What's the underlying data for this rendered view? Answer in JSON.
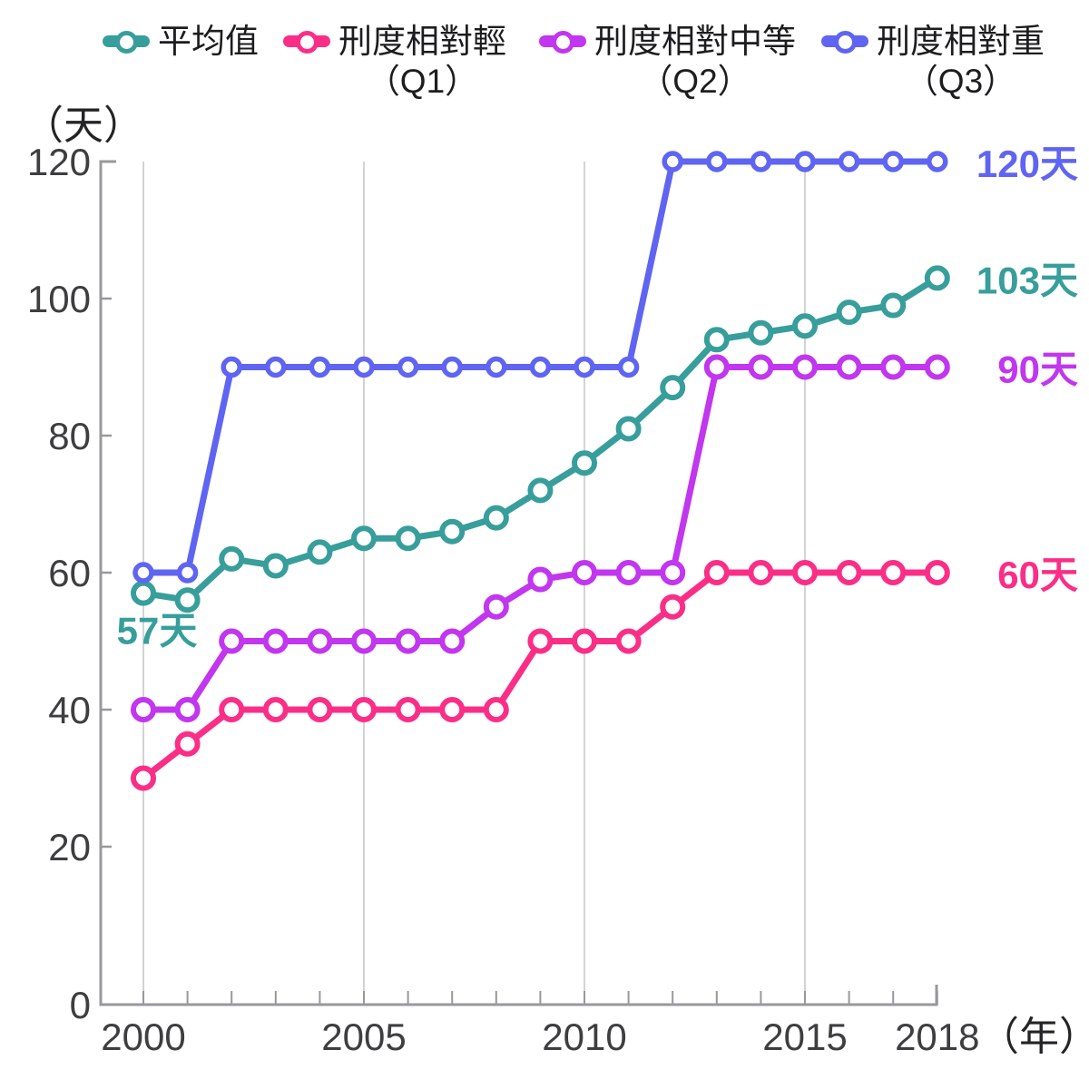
{
  "axes": {
    "y": {
      "unit": "（天）",
      "ticks": [
        120,
        100,
        80,
        60,
        40,
        20,
        0
      ]
    },
    "x": {
      "unit": "（年）",
      "tick_labels": [
        2000,
        2005,
        2010,
        2015,
        2018
      ]
    }
  },
  "legend": {
    "items": [
      {
        "id": "mean",
        "name": "平均值",
        "qualifier": "",
        "color": "#379e9b"
      },
      {
        "id": "q1",
        "name": "刑度相對輕",
        "qualifier": "（Q1）",
        "color": "#fb2e87"
      },
      {
        "id": "q2",
        "name": "刑度相對中等",
        "qualifier": "（Q2）",
        "color": "#c136ee"
      },
      {
        "id": "q3",
        "name": "刑度相對重",
        "qualifier": "（Q3）",
        "color": "#5f64f2"
      }
    ]
  },
  "chart_data": {
    "type": "line",
    "x": [
      2000,
      2001,
      2002,
      2003,
      2004,
      2005,
      2006,
      2007,
      2008,
      2009,
      2010,
      2011,
      2012,
      2013,
      2014,
      2015,
      2016,
      2017,
      2018
    ],
    "xlabel": "（年）",
    "ylabel": "（天）",
    "ylim": [
      0,
      120
    ],
    "gridlines_x": [
      2000,
      2005,
      2010,
      2015
    ],
    "series": [
      {
        "id": "mean",
        "name": "平均值",
        "color": "#379e9b",
        "values": [
          57,
          56,
          62,
          61,
          63,
          65,
          65,
          66,
          68,
          72,
          76,
          81,
          87,
          94,
          95,
          96,
          98,
          99,
          103
        ]
      },
      {
        "id": "q1",
        "name": "刑度相對輕（Q1）",
        "color": "#fb2e87",
        "values": [
          30,
          35,
          40,
          40,
          40,
          40,
          40,
          40,
          40,
          50,
          50,
          50,
          55,
          60,
          60,
          60,
          60,
          60,
          60
        ]
      },
      {
        "id": "q2",
        "name": "刑度相對中等（Q2）",
        "color": "#c136ee",
        "values": [
          40,
          40,
          50,
          50,
          50,
          50,
          50,
          50,
          55,
          59,
          60,
          60,
          60,
          90,
          90,
          90,
          90,
          90,
          90
        ]
      },
      {
        "id": "q3",
        "name": "刑度相對重（Q3）",
        "color": "#5f64f2",
        "values": [
          60,
          60,
          90,
          90,
          90,
          90,
          90,
          90,
          90,
          90,
          90,
          90,
          120,
          120,
          120,
          120,
          120,
          120,
          120
        ]
      }
    ],
    "annotations": [
      {
        "text": "57天",
        "series": "mean",
        "year": 2000,
        "value": 57,
        "placement": "below"
      },
      {
        "text": "120天",
        "series": "q3",
        "year": 2018,
        "value": 120,
        "placement": "right"
      },
      {
        "text": "103天",
        "series": "mean",
        "year": 2018,
        "value": 103,
        "placement": "right"
      },
      {
        "text": "90天",
        "series": "q2",
        "year": 2018,
        "value": 90,
        "placement": "right"
      },
      {
        "text": "60天",
        "series": "q1",
        "year": 2018,
        "value": 60,
        "placement": "right"
      }
    ]
  },
  "colors": {
    "axis": "#98989e",
    "grid": "#d3d3d5",
    "tick_text": "#3e3e40"
  }
}
